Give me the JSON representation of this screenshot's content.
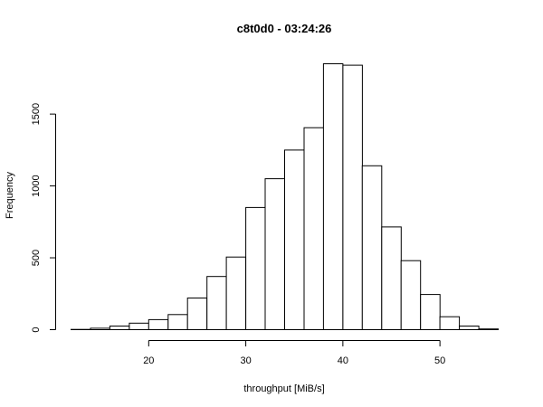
{
  "chart_data": {
    "type": "bar",
    "title": "c8t0d0 - 03:24:26",
    "xlabel": "throughput [MiB/s]",
    "ylabel": "Frequency",
    "bin_edges": [
      12,
      14,
      16,
      18,
      20,
      22,
      24,
      26,
      28,
      30,
      32,
      34,
      36,
      38,
      40,
      42,
      44,
      46,
      48,
      50,
      52,
      54,
      56
    ],
    "values": [
      2,
      10,
      25,
      45,
      70,
      105,
      220,
      370,
      505,
      850,
      1050,
      1250,
      1405,
      1850,
      1840,
      1140,
      715,
      480,
      245,
      90,
      25,
      5
    ],
    "x_ticks": [
      20,
      30,
      40,
      50
    ],
    "y_ticks": [
      0,
      500,
      1000,
      1500
    ],
    "xlim": [
      12,
      56
    ],
    "ylim": [
      0,
      1900
    ],
    "grid": false,
    "legend": "none",
    "bar_fill": "#ffffff",
    "bar_stroke": "#000000"
  }
}
